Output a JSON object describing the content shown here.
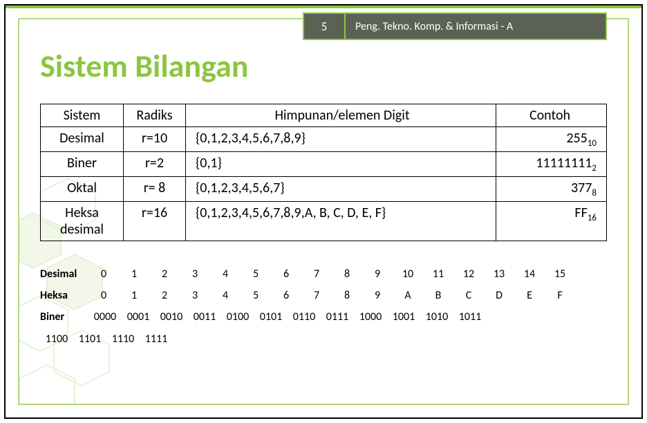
{
  "header": {
    "page_number": "5",
    "course": "Peng. Tekno. Komp. & Informasi - A"
  },
  "title": "Sistem Bilangan",
  "accent_color": "#8cc63f",
  "header_bg": "#5b6153",
  "table": {
    "columns": [
      "Sistem",
      "Radiks",
      "Himpunan/elemen Digit",
      "Contoh"
    ],
    "rows": [
      {
        "system": "Desimal",
        "radix": "r=10",
        "set": "{0,1,2,3,4,5,6,7,8,9}",
        "example": "255",
        "example_sub": "10"
      },
      {
        "system": "Biner",
        "radix": "r=2",
        "set": "{0,1}",
        "example": "11111111",
        "example_sub": "2"
      },
      {
        "system": "Oktal",
        "radix": "r= 8",
        "set": "{0,1,2,3,4,5,6,7}",
        "example": "377",
        "example_sub": "8"
      },
      {
        "system": "Heksa desimal",
        "radix": "r=16",
        "set": "{0,1,2,3,4,5,6,7,8,9,A, B, C, D, E, F}",
        "example": "FF",
        "example_sub": "16"
      }
    ]
  },
  "lower": {
    "decimal_label": "Desimal",
    "decimal_values": [
      "0",
      "1",
      "2",
      "3",
      "4",
      "5",
      "6",
      "7",
      "8",
      "9",
      "10",
      "11",
      "12",
      "13",
      "14",
      "15"
    ],
    "hex_label": "Heksa",
    "hex_values": [
      "0",
      "1",
      "2",
      "3",
      "4",
      "5",
      "6",
      "7",
      "8",
      "9",
      "A",
      "B",
      "C",
      "D",
      "E",
      "F"
    ],
    "biner_label": "Biner",
    "biner_line1": [
      "0000",
      "0001",
      "0010",
      "0011",
      "0100",
      "0101",
      "0110",
      "0111",
      "1000",
      "1001",
      "1010",
      "1011"
    ],
    "biner_line2": [
      "1100",
      "1101",
      "1110",
      "1111"
    ]
  }
}
